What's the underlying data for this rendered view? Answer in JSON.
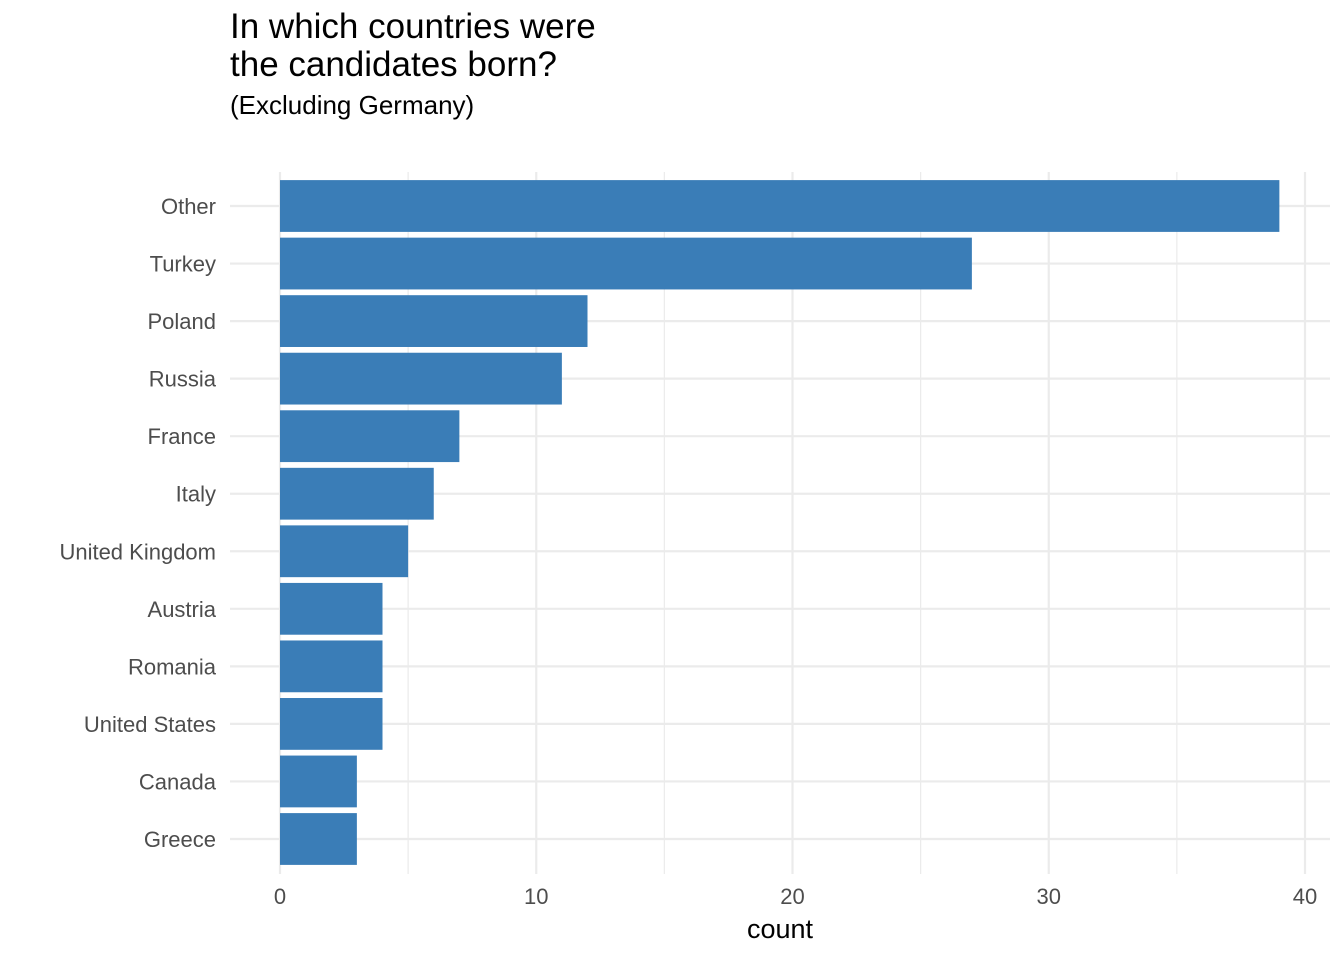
{
  "chart_data": {
    "type": "bar",
    "orientation": "horizontal",
    "title_lines": [
      "In which countries were",
      "the candidates born?"
    ],
    "subtitle": "(Excluding Germany)",
    "xlabel": "count",
    "ylabel": "",
    "xlim": [
      0,
      40
    ],
    "xticks": [
      0,
      10,
      20,
      30,
      40
    ],
    "grid": true,
    "categories": [
      "Other",
      "Turkey",
      "Poland",
      "Russia",
      "France",
      "Italy",
      "United Kingdom",
      "Austria",
      "Romania",
      "United States",
      "Canada",
      "Greece"
    ],
    "values": [
      39,
      27,
      12,
      11,
      7,
      6,
      5,
      4,
      4,
      4,
      3,
      3
    ],
    "bar_color": "#3a7db7",
    "grid_color": "#ebebeb"
  }
}
